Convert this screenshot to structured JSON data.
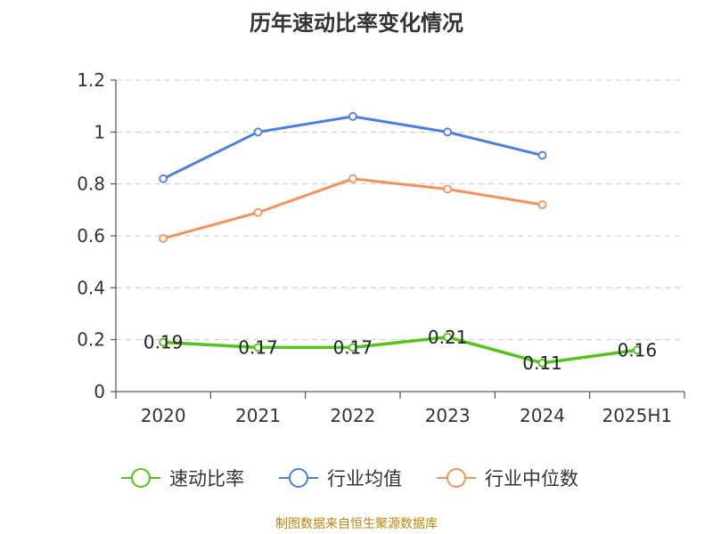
{
  "page": {
    "footer": "制图数据来自恒生聚源数据库"
  },
  "chart_data": {
    "type": "line",
    "title": "历年速动比率变化情况",
    "xlabel": "",
    "ylabel": "",
    "categories": [
      "2020",
      "2021",
      "2022",
      "2023",
      "2024",
      "2025H1"
    ],
    "ylim": [
      0,
      1.2
    ],
    "yticks": [
      "0",
      "0.2",
      "0.4",
      "0.6",
      "0.8",
      "1",
      "1.2"
    ],
    "grid": true,
    "legend_position": "bottom",
    "series": [
      {
        "name": "速动比率",
        "color": "#52c41a",
        "values": [
          0.19,
          0.17,
          0.17,
          0.21,
          0.11,
          0.16
        ],
        "data_labels": [
          "0.19",
          "0.17",
          "0.17",
          "0.21",
          "0.11",
          "0.16"
        ],
        "line_width": "thick"
      },
      {
        "name": "行业均值",
        "color": "#4a7fdc",
        "values": [
          0.82,
          1.0,
          1.06,
          1.0,
          0.91,
          null
        ],
        "line_width": "normal"
      },
      {
        "name": "行业中位数",
        "color": "#f5915a",
        "values": [
          0.59,
          0.69,
          0.82,
          0.78,
          0.72,
          null
        ],
        "line_width": "normal"
      }
    ]
  }
}
